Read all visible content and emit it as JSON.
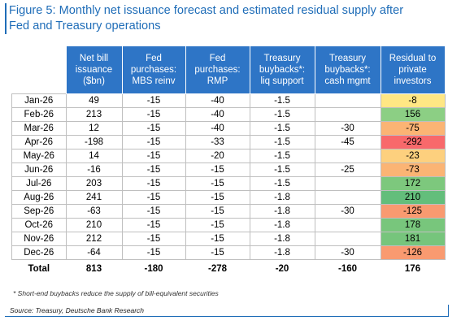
{
  "title": [
    "Figure 5: Monthly net issuance forecast and estimated residual supply after",
    "Fed and Treasury operations"
  ],
  "table": {
    "header": [
      [
        "Net bill",
        "issuance",
        "($bn)"
      ],
      [
        "Fed",
        "purchases:",
        "MBS reinv"
      ],
      [
        "Fed",
        "purchases:",
        "RMP"
      ],
      [
        "Treasury",
        "buybacks*:",
        "liq support"
      ],
      [
        "Treasury",
        "buybacks*:",
        "cash mgmt"
      ],
      [
        "Residual to",
        "private",
        "investors"
      ]
    ],
    "rows": [
      [
        "Jan-26",
        49,
        -15,
        -40,
        -1.5,
        null,
        -8
      ],
      [
        "Feb-26",
        213,
        -15,
        -40,
        -1.5,
        null,
        156
      ],
      [
        "Mar-26",
        12,
        -15,
        -40,
        -1.5,
        -30,
        -75
      ],
      [
        "Apr-26",
        -198,
        -15,
        -33,
        -1.5,
        -45,
        -292
      ],
      [
        "May-26",
        14,
        -15,
        -20,
        -1.5,
        null,
        -23
      ],
      [
        "Jun-26",
        -16,
        -15,
        -15,
        -1.5,
        -25,
        -73
      ],
      [
        "Jul-26",
        203,
        -15,
        -15,
        -1.5,
        null,
        172
      ],
      [
        "Aug-26",
        241,
        -15,
        -15,
        -1.8,
        null,
        210
      ],
      [
        "Sep-26",
        -63,
        -15,
        -15,
        -1.8,
        -30,
        -125
      ],
      [
        "Oct-26",
        210,
        -15,
        -15,
        -1.8,
        null,
        178
      ],
      [
        "Nov-26",
        212,
        -15,
        -15,
        -1.8,
        null,
        181
      ],
      [
        "Dec-26",
        -64,
        -15,
        -15,
        -1.8,
        -30,
        -126
      ]
    ],
    "residual_colors": [
      "#ffe784",
      "#8ccf84",
      "#fbb474",
      "#f8696b",
      "#fdd07e",
      "#fbb474",
      "#7dc87d",
      "#63be7b",
      "#f99a70",
      "#78c67c",
      "#76c57c",
      "#f99a70"
    ],
    "total": [
      "Total",
      813,
      -180,
      -278,
      -20,
      -160,
      176
    ]
  },
  "footnote": "* Short-end buybacks reduce the supply of bill-equivalent securities",
  "source": "Source: Treasury, Deutsche Bank Research"
}
